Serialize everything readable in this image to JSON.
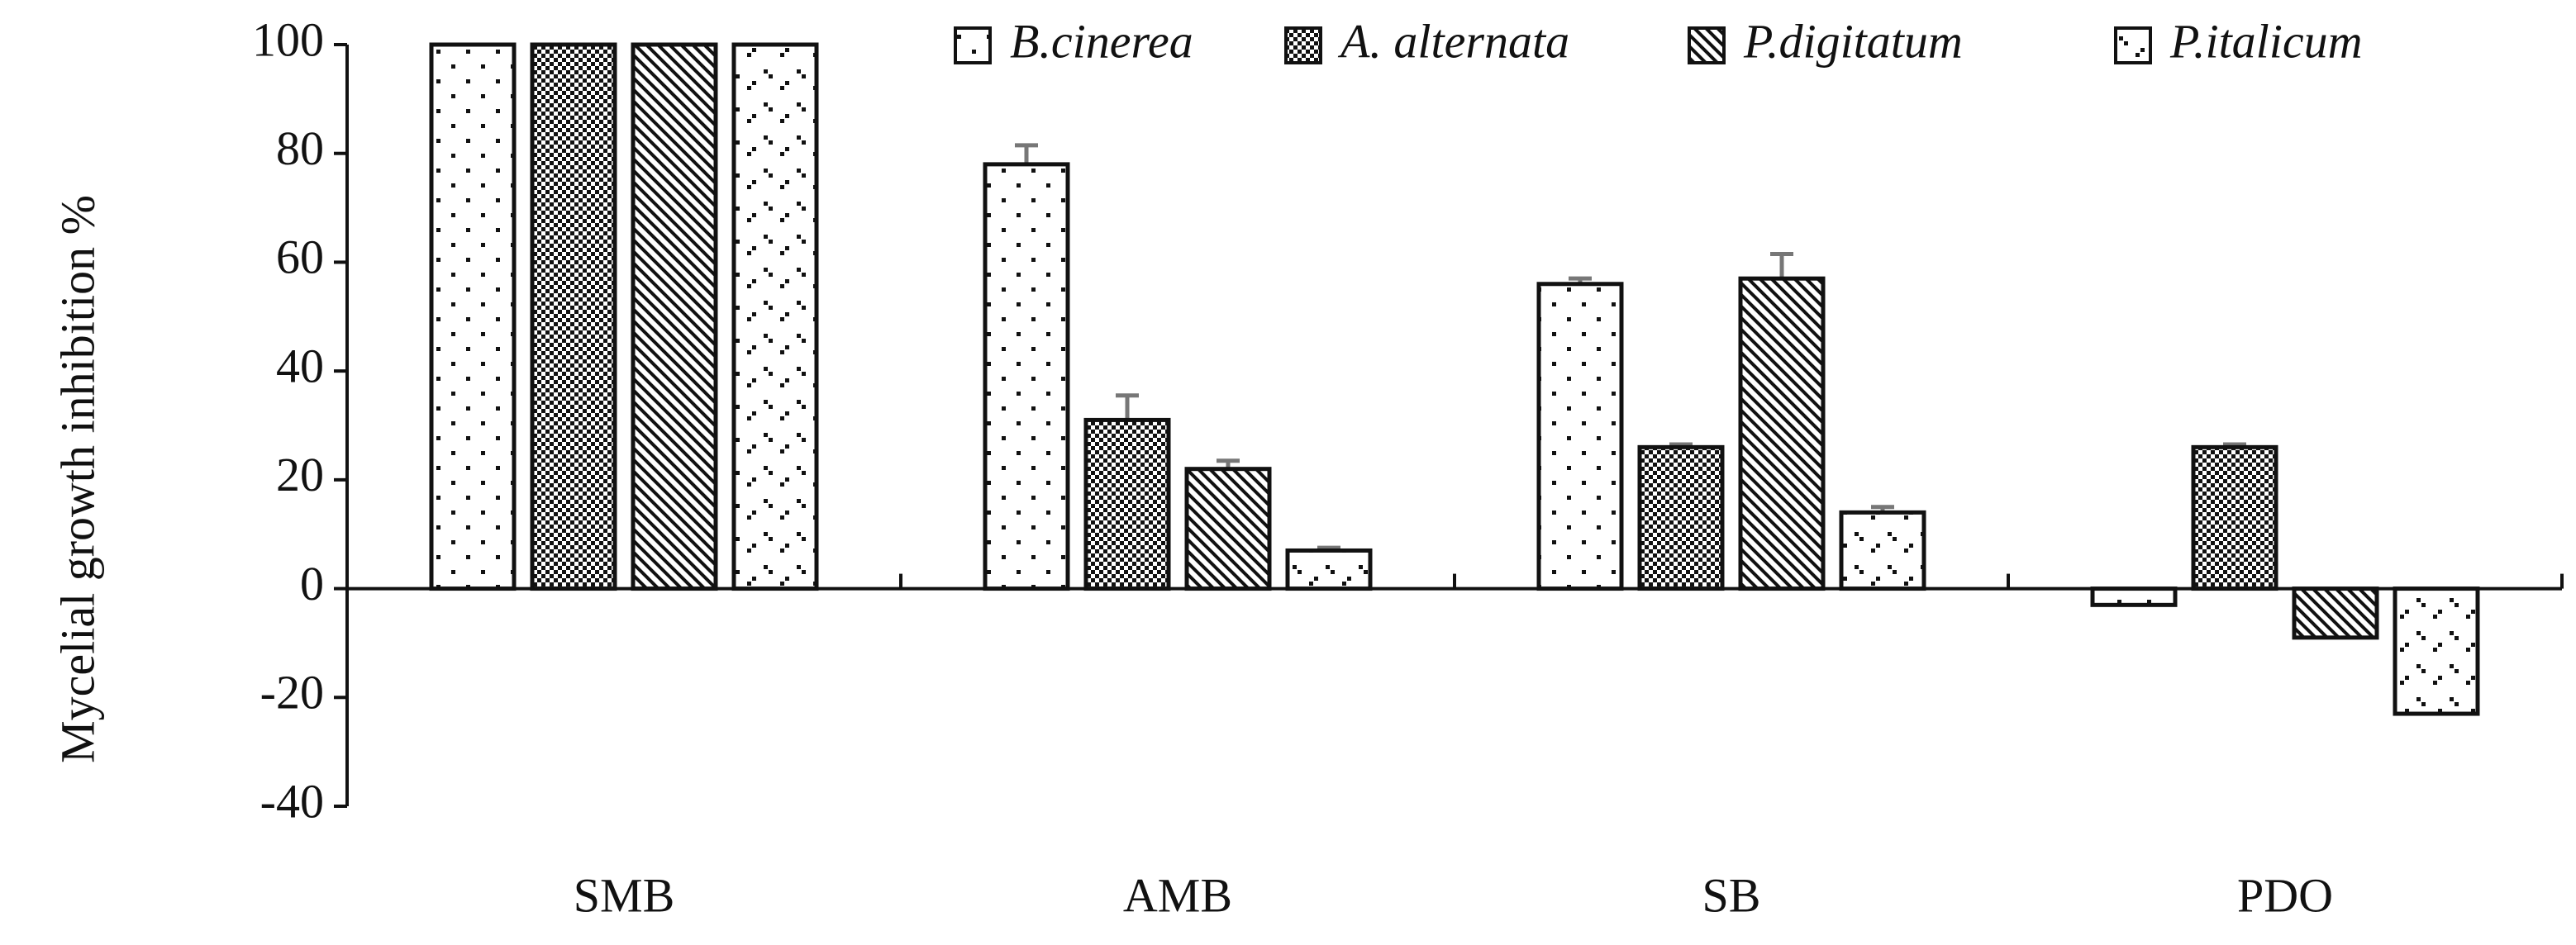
{
  "chart_data": {
    "type": "bar",
    "y_label": "Mycelial growth inhibition %",
    "categories": [
      "SMB",
      "AMB",
      "SB",
      "PDO"
    ],
    "series": [
      {
        "name": "B.cinerea",
        "values": [
          100,
          78,
          56,
          -3
        ],
        "errors": [
          0,
          3.5,
          1,
          1.5
        ]
      },
      {
        "name": "A. alternata",
        "values": [
          100,
          31,
          26,
          26
        ],
        "errors": [
          0,
          4.5,
          0.5,
          0.5
        ]
      },
      {
        "name": "P.digitatum",
        "values": [
          100,
          22,
          57,
          -9
        ],
        "errors": [
          0,
          1.5,
          4.5,
          5
        ]
      },
      {
        "name": "P.italicum",
        "values": [
          100,
          7,
          14,
          -23
        ],
        "errors": [
          0,
          0.5,
          1,
          0.5
        ]
      }
    ],
    "ylim": [
      -40,
      100
    ],
    "yticks": [
      -40,
      -20,
      0,
      20,
      40,
      60,
      80,
      100
    ]
  }
}
